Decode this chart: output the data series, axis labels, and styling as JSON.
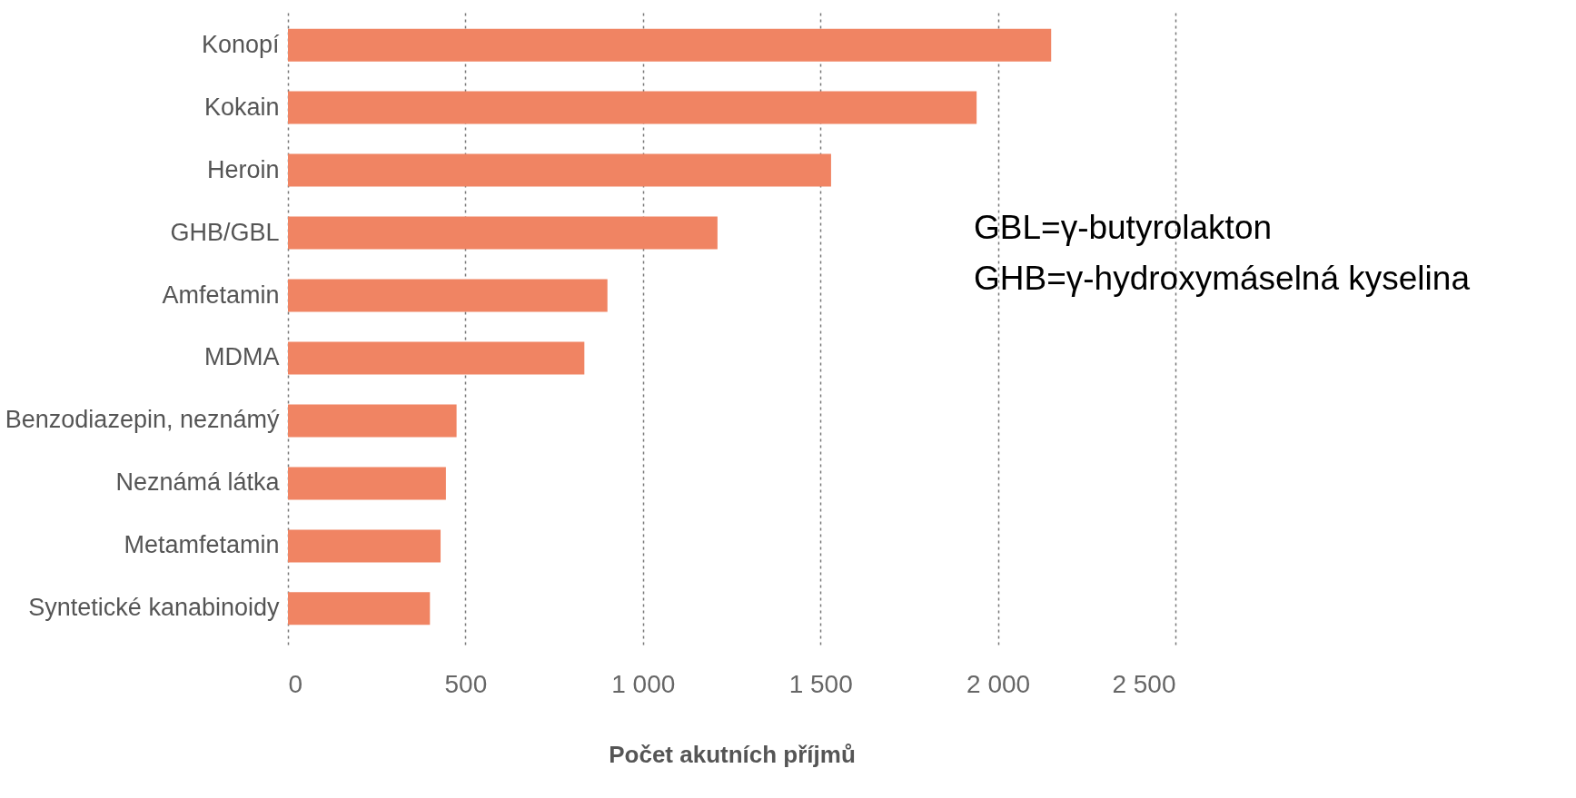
{
  "chart_data": {
    "type": "bar",
    "orientation": "horizontal",
    "xlabel": "Počet akutních příjmů",
    "categories": [
      "Konopí",
      "Kokain",
      "Heroin",
      "GHB/GBL",
      "Amfetamin",
      "MDMA",
      "Benzodiazepin, neznámý",
      "Neznámá látka",
      "Metamfetamin",
      "Syntetické kanabinoidy"
    ],
    "values": [
      2150,
      1940,
      1530,
      1210,
      900,
      835,
      475,
      445,
      430,
      400
    ],
    "color": "#f08463",
    "xlim": [
      0,
      2500
    ],
    "xticks": [
      0,
      {
        "value": 500,
        "label": "500"
      },
      {
        "value": 1000,
        "label": "1 000"
      },
      {
        "value": 1500,
        "label": "1 500"
      },
      {
        "value": 2000,
        "label": "2 000"
      },
      {
        "value": 2500,
        "label": "2 500"
      }
    ],
    "grid": "x",
    "annotations": [
      "GBL=γ-butyrolakton",
      "GHB=γ-hydroxymáselná kyselina"
    ]
  }
}
